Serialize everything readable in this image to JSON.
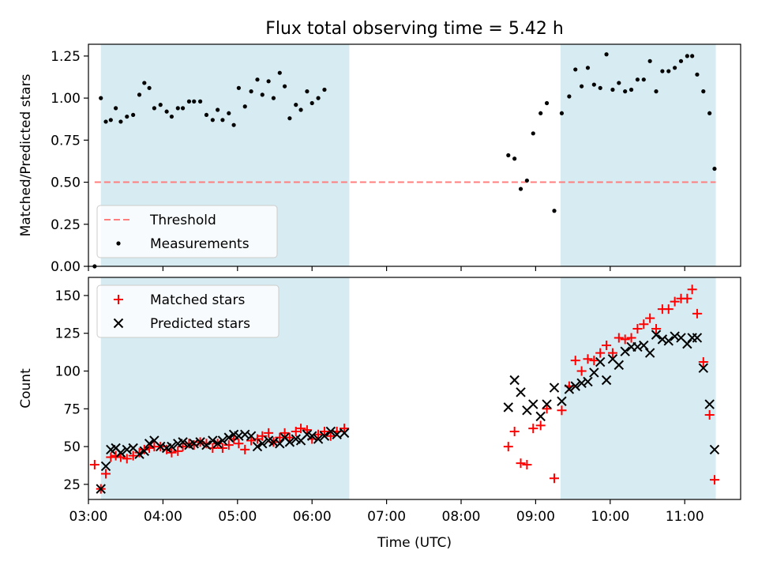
{
  "title": "Flux total observing time = 5.42 h",
  "chart_data": [
    {
      "type": "scatter",
      "panel": "top",
      "xlabel": "",
      "ylabel": "Matched/Predicted stars",
      "xlim": [
        "03:00",
        "11:45"
      ],
      "ylim": [
        0,
        1.32
      ],
      "yticks": [
        "0.00",
        "0.25",
        "0.50",
        "0.75",
        "1.00",
        "1.25"
      ],
      "shaded_intervals": [
        [
          "03:10",
          "06:30"
        ],
        [
          "09:20",
          "11:25"
        ]
      ],
      "shade_color": "#add8e6",
      "threshold": {
        "name": "Threshold",
        "value": 0.5,
        "from": "03:05",
        "to": "11:25",
        "color": "#ff7f7f",
        "style": "dashed"
      },
      "legend": {
        "position": "lower-left",
        "items": [
          "Threshold",
          "Measurements"
        ]
      },
      "series": [
        {
          "name": "Measurements",
          "color": "#000000",
          "marker": "dot",
          "points": [
            [
              "03:05",
              0.0
            ],
            [
              "03:10",
              1.0
            ],
            [
              "03:14",
              0.86
            ],
            [
              "03:18",
              0.87
            ],
            [
              "03:22",
              0.94
            ],
            [
              "03:26",
              0.86
            ],
            [
              "03:31",
              0.89
            ],
            [
              "03:36",
              0.9
            ],
            [
              "03:41",
              1.02
            ],
            [
              "03:45",
              1.09
            ],
            [
              "03:49",
              1.06
            ],
            [
              "03:53",
              0.94
            ],
            [
              "03:58",
              0.96
            ],
            [
              "04:03",
              0.92
            ],
            [
              "04:07",
              0.89
            ],
            [
              "04:12",
              0.94
            ],
            [
              "04:16",
              0.94
            ],
            [
              "04:21",
              0.98
            ],
            [
              "04:25",
              0.98
            ],
            [
              "04:30",
              0.98
            ],
            [
              "04:35",
              0.9
            ],
            [
              "04:40",
              0.87
            ],
            [
              "04:44",
              0.93
            ],
            [
              "04:48",
              0.87
            ],
            [
              "04:53",
              0.91
            ],
            [
              "04:57",
              0.84
            ],
            [
              "05:01",
              1.06
            ],
            [
              "05:06",
              0.95
            ],
            [
              "05:11",
              1.04
            ],
            [
              "05:16",
              1.11
            ],
            [
              "05:20",
              1.02
            ],
            [
              "05:25",
              1.1
            ],
            [
              "05:29",
              1.0
            ],
            [
              "05:34",
              1.15
            ],
            [
              "05:38",
              1.07
            ],
            [
              "05:42",
              0.88
            ],
            [
              "05:47",
              0.96
            ],
            [
              "05:51",
              0.93
            ],
            [
              "05:56",
              1.04
            ],
            [
              "06:00",
              0.97
            ],
            [
              "06:05",
              1.0
            ],
            [
              "06:10",
              1.05
            ],
            [
              "08:38",
              0.66
            ],
            [
              "08:43",
              0.64
            ],
            [
              "08:48",
              0.46
            ],
            [
              "08:53",
              0.51
            ],
            [
              "08:58",
              0.79
            ],
            [
              "09:04",
              0.91
            ],
            [
              "09:09",
              0.97
            ],
            [
              "09:15",
              0.33
            ],
            [
              "09:21",
              0.91
            ],
            [
              "09:27",
              1.01
            ],
            [
              "09:32",
              1.17
            ],
            [
              "09:37",
              1.07
            ],
            [
              "09:42",
              1.18
            ],
            [
              "09:47",
              1.08
            ],
            [
              "09:52",
              1.06
            ],
            [
              "09:57",
              1.26
            ],
            [
              "10:02",
              1.05
            ],
            [
              "10:07",
              1.09
            ],
            [
              "10:12",
              1.04
            ],
            [
              "10:17",
              1.05
            ],
            [
              "10:22",
              1.11
            ],
            [
              "10:27",
              1.11
            ],
            [
              "10:32",
              1.22
            ],
            [
              "10:37",
              1.04
            ],
            [
              "10:42",
              1.16
            ],
            [
              "10:47",
              1.16
            ],
            [
              "10:52",
              1.18
            ],
            [
              "10:57",
              1.22
            ],
            [
              "11:02",
              1.25
            ],
            [
              "11:06",
              1.25
            ],
            [
              "11:10",
              1.14
            ],
            [
              "11:15",
              1.04
            ],
            [
              "11:20",
              0.91
            ],
            [
              "11:24",
              0.58
            ]
          ]
        }
      ]
    },
    {
      "type": "scatter",
      "panel": "bottom",
      "xlabel": "Time (UTC)",
      "ylabel": "Count",
      "xlim": [
        "03:00",
        "11:45"
      ],
      "ylim": [
        15,
        162
      ],
      "xticks": [
        "03:00",
        "04:00",
        "05:00",
        "06:00",
        "07:00",
        "08:00",
        "09:00",
        "10:00",
        "11:00"
      ],
      "yticks": [
        "25",
        "50",
        "75",
        "100",
        "125",
        "150"
      ],
      "shaded_intervals": [
        [
          "03:10",
          "06:30"
        ],
        [
          "09:20",
          "11:25"
        ]
      ],
      "shade_color": "#add8e6",
      "legend": {
        "position": "upper-left",
        "items": [
          "Matched stars",
          "Predicted stars"
        ]
      },
      "series": [
        {
          "name": "Matched stars",
          "color": "#ff0000",
          "marker": "plus",
          "points": [
            [
              "03:05",
              38
            ],
            [
              "03:10",
              22
            ],
            [
              "03:14",
              32
            ],
            [
              "03:18",
              43
            ],
            [
              "03:22",
              44
            ],
            [
              "03:26",
              43
            ],
            [
              "03:31",
              42
            ],
            [
              "03:36",
              44
            ],
            [
              "03:41",
              46
            ],
            [
              "03:45",
              48
            ],
            [
              "03:49",
              49
            ],
            [
              "03:53",
              50
            ],
            [
              "03:58",
              50
            ],
            [
              "04:03",
              48
            ],
            [
              "04:07",
              46
            ],
            [
              "04:12",
              47
            ],
            [
              "04:16",
              50
            ],
            [
              "04:21",
              52
            ],
            [
              "04:25",
              51
            ],
            [
              "04:30",
              53
            ],
            [
              "04:35",
              52
            ],
            [
              "04:40",
              49
            ],
            [
              "04:44",
              52
            ],
            [
              "04:48",
              49
            ],
            [
              "04:53",
              51
            ],
            [
              "04:57",
              55
            ],
            [
              "05:01",
              52
            ],
            [
              "05:06",
              48
            ],
            [
              "05:11",
              54
            ],
            [
              "05:16",
              55
            ],
            [
              "05:20",
              57
            ],
            [
              "05:25",
              59
            ],
            [
              "05:29",
              53
            ],
            [
              "05:34",
              56
            ],
            [
              "05:38",
              59
            ],
            [
              "05:42",
              56
            ],
            [
              "05:47",
              60
            ],
            [
              "05:51",
              62
            ],
            [
              "05:56",
              61
            ],
            [
              "06:00",
              55
            ],
            [
              "06:05",
              58
            ],
            [
              "06:10",
              60
            ],
            [
              "06:15",
              57
            ],
            [
              "06:20",
              60
            ],
            [
              "06:26",
              62
            ],
            [
              "08:38",
              50
            ],
            [
              "08:43",
              60
            ],
            [
              "08:48",
              39
            ],
            [
              "08:53",
              38
            ],
            [
              "08:58",
              62
            ],
            [
              "09:04",
              64
            ],
            [
              "09:09",
              75
            ],
            [
              "09:15",
              29
            ],
            [
              "09:21",
              74
            ],
            [
              "09:27",
              90
            ],
            [
              "09:32",
              107
            ],
            [
              "09:37",
              100
            ],
            [
              "09:42",
              108
            ],
            [
              "09:47",
              107
            ],
            [
              "09:52",
              112
            ],
            [
              "09:57",
              117
            ],
            [
              "10:02",
              112
            ],
            [
              "10:07",
              122
            ],
            [
              "10:12",
              121
            ],
            [
              "10:17",
              122
            ],
            [
              "10:22",
              128
            ],
            [
              "10:27",
              131
            ],
            [
              "10:32",
              135
            ],
            [
              "10:37",
              128
            ],
            [
              "10:42",
              141
            ],
            [
              "10:47",
              141
            ],
            [
              "10:52",
              146
            ],
            [
              "10:57",
              148
            ],
            [
              "11:02",
              148
            ],
            [
              "11:06",
              154
            ],
            [
              "11:10",
              138
            ],
            [
              "11:15",
              106
            ],
            [
              "11:20",
              71
            ],
            [
              "11:24",
              28
            ]
          ]
        },
        {
          "name": "Predicted stars",
          "color": "#000000",
          "marker": "x",
          "points": [
            [
              "03:10",
              22
            ],
            [
              "03:14",
              37
            ],
            [
              "03:18",
              48
            ],
            [
              "03:22",
              49
            ],
            [
              "03:26",
              46
            ],
            [
              "03:31",
              48
            ],
            [
              "03:36",
              49
            ],
            [
              "03:41",
              45
            ],
            [
              "03:45",
              47
            ],
            [
              "03:49",
              52
            ],
            [
              "03:53",
              54
            ],
            [
              "03:58",
              50
            ],
            [
              "04:03",
              49
            ],
            [
              "04:07",
              50
            ],
            [
              "04:12",
              52
            ],
            [
              "04:16",
              53
            ],
            [
              "04:21",
              51
            ],
            [
              "04:25",
              52
            ],
            [
              "04:30",
              53
            ],
            [
              "04:35",
              51
            ],
            [
              "04:40",
              54
            ],
            [
              "04:44",
              52
            ],
            [
              "04:48",
              54
            ],
            [
              "04:53",
              56
            ],
            [
              "04:57",
              58
            ],
            [
              "05:01",
              57
            ],
            [
              "05:06",
              58
            ],
            [
              "05:11",
              57
            ],
            [
              "05:16",
              50
            ],
            [
              "05:20",
              52
            ],
            [
              "05:25",
              54
            ],
            [
              "05:29",
              53
            ],
            [
              "05:34",
              52
            ],
            [
              "05:38",
              56
            ],
            [
              "05:42",
              53
            ],
            [
              "05:47",
              55
            ],
            [
              "05:51",
              54
            ],
            [
              "05:56",
              58
            ],
            [
              "06:00",
              57
            ],
            [
              "06:05",
              55
            ],
            [
              "06:10",
              57
            ],
            [
              "06:15",
              60
            ],
            [
              "06:20",
              58
            ],
            [
              "06:26",
              59
            ],
            [
              "08:38",
              76
            ],
            [
              "08:43",
              94
            ],
            [
              "08:48",
              86
            ],
            [
              "08:53",
              74
            ],
            [
              "08:58",
              78
            ],
            [
              "09:04",
              70
            ],
            [
              "09:09",
              78
            ],
            [
              "09:15",
              89
            ],
            [
              "09:21",
              80
            ],
            [
              "09:27",
              88
            ],
            [
              "09:32",
              90
            ],
            [
              "09:37",
              92
            ],
            [
              "09:42",
              93
            ],
            [
              "09:47",
              99
            ],
            [
              "09:52",
              106
            ],
            [
              "09:57",
              94
            ],
            [
              "10:02",
              108
            ],
            [
              "10:07",
              104
            ],
            [
              "10:12",
              113
            ],
            [
              "10:17",
              116
            ],
            [
              "10:22",
              116
            ],
            [
              "10:27",
              117
            ],
            [
              "10:32",
              112
            ],
            [
              "10:37",
              124
            ],
            [
              "10:42",
              121
            ],
            [
              "10:47",
              120
            ],
            [
              "10:52",
              123
            ],
            [
              "10:57",
              122
            ],
            [
              "11:02",
              118
            ],
            [
              "11:06",
              122
            ],
            [
              "11:10",
              122
            ],
            [
              "11:15",
              102
            ],
            [
              "11:20",
              78
            ],
            [
              "11:24",
              48
            ]
          ]
        }
      ]
    }
  ]
}
